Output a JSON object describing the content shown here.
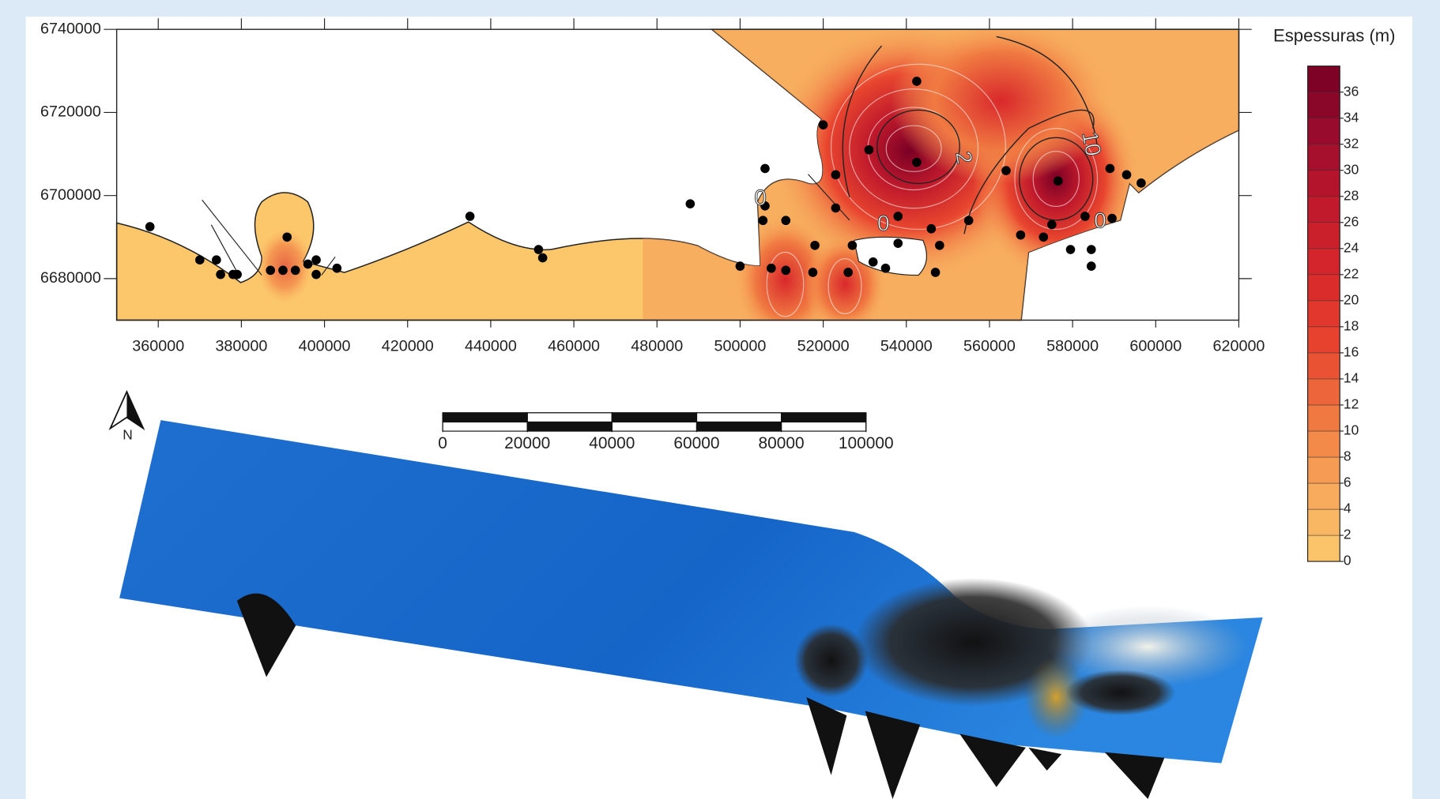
{
  "map": {
    "x_axis": {
      "lim": [
        350000,
        620000
      ],
      "ticks": [
        360000,
        380000,
        400000,
        420000,
        440000,
        460000,
        480000,
        500000,
        520000,
        540000,
        560000,
        580000,
        600000,
        620000
      ]
    },
    "y_axis": {
      "lim": [
        6670000,
        6740000
      ],
      "ticks": [
        6680000,
        6700000,
        6720000,
        6740000
      ]
    },
    "points": {
      "color": "#000000",
      "x": [
        358000,
        370000,
        374000,
        375000,
        378000,
        379000,
        391000,
        387000,
        390000,
        393000,
        396000,
        398000,
        398000,
        403000,
        435000,
        451500,
        452500,
        488000,
        500000,
        506000,
        506000,
        505500,
        507500,
        511000,
        511000,
        518000,
        517500,
        520000,
        523000,
        523000,
        527000,
        526000,
        531000,
        532000,
        535000,
        538000,
        538000,
        542500,
        542500,
        546000,
        548000,
        547000,
        555000,
        564000,
        567500,
        573000,
        575000,
        576500,
        579500,
        583000,
        584500,
        584500,
        589000,
        589500,
        593000,
        596500
      ],
      "y": [
        6692500,
        6684500,
        6684500,
        6681000,
        6681000,
        6681000,
        6690000,
        6682000,
        6682000,
        6682000,
        6683500,
        6684500,
        6681000,
        6682500,
        6695000,
        6687000,
        6685000,
        6698000,
        6683000,
        6706500,
        6697500,
        6694000,
        6682500,
        6694000,
        6682000,
        6688000,
        6681500,
        6717000,
        6705000,
        6697000,
        6688000,
        6681500,
        6711000,
        6684000,
        6682500,
        6695000,
        6688500,
        6727500,
        6708000,
        6692000,
        6688000,
        6681500,
        6694000,
        6706000,
        6690500,
        6690000,
        6693000,
        6703500,
        6687000,
        6695000,
        6687000,
        6683000,
        6706500,
        6694500,
        6705000,
        6703000
      ]
    },
    "contour_labels": [
      "0",
      "0",
      "0",
      "10",
      "2"
    ]
  },
  "legend": {
    "title": "Espessuras (m)",
    "lim": [
      0,
      38
    ],
    "ticks": [
      0,
      2,
      4,
      6,
      8,
      10,
      12,
      14,
      16,
      18,
      20,
      22,
      24,
      26,
      28,
      30,
      32,
      34,
      36
    ],
    "colormap": [
      "#fdca6e",
      "#f8a85a",
      "#f07a42",
      "#e8462f",
      "#d9282b",
      "#c01a2c",
      "#9c0c2d",
      "#760024"
    ]
  },
  "scale_bar": {
    "lim": [
      0,
      100000
    ],
    "ticks": [
      0,
      20000,
      40000,
      60000,
      80000,
      100000
    ]
  },
  "north_arrow": {
    "label": "N"
  }
}
